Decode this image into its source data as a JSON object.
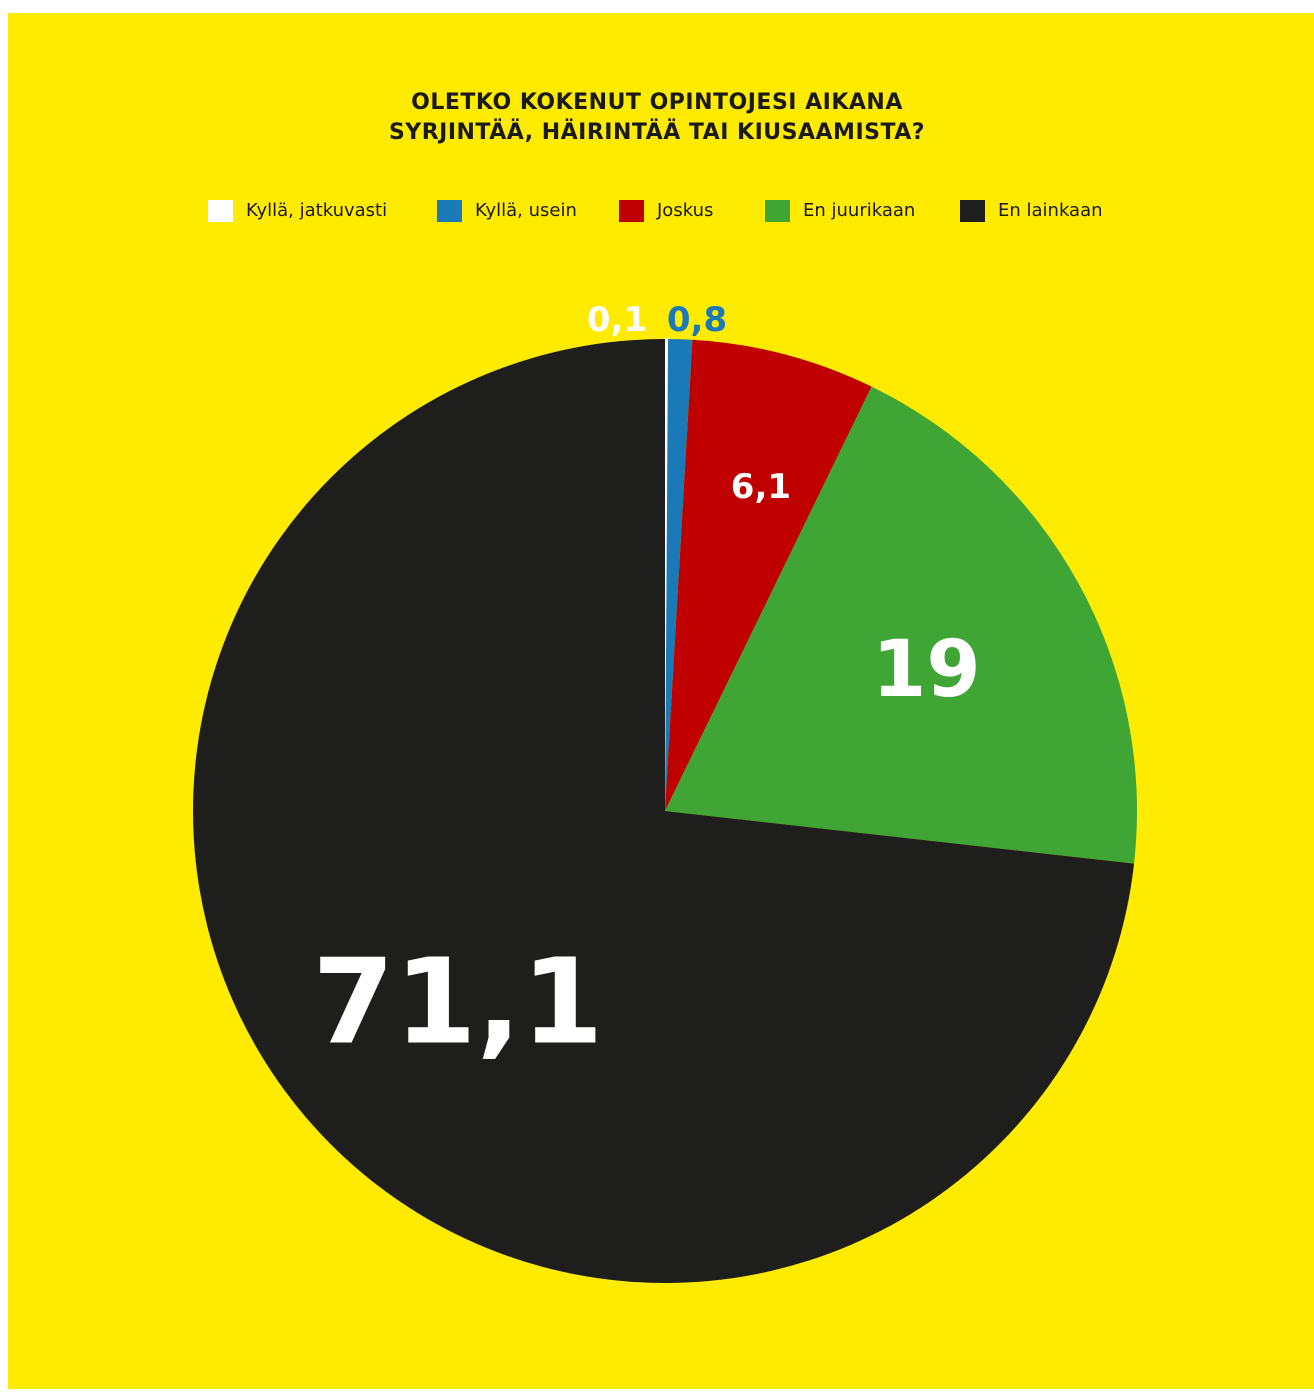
{
  "chart_data": {
    "type": "pie",
    "title": "OLETKO KOKENUT OPINTOJESI AIKANA SYRJINTÄÄ, HÄIRINTÄÄ TAI KIUSAAMISTA?",
    "title_lines": [
      "OLETKO KOKENUT OPINTOJESI AIKANA",
      "SYRJINTÄÄ, HÄIRINTÄÄ TAI KIUSAAMISTA?"
    ],
    "legend_position": "top",
    "categories": [
      "Kyllä, jatkuvasti",
      "Kyllä, usein",
      "Joskus",
      "En juurikaan",
      "En lainkaan"
    ],
    "values": [
      0.1,
      0.8,
      6.1,
      19,
      71.1
    ],
    "value_labels": [
      "0,1",
      "0,8",
      "6,1",
      "19",
      "71,1"
    ],
    "colors": [
      "#ffffff",
      "#1a7ab8",
      "#c00000",
      "#3fa535",
      "#1e1e1c"
    ],
    "label_colors": [
      "#ffffff",
      "#1a7ab8",
      "#ffffff",
      "#ffffff",
      "#ffffff"
    ]
  },
  "page": {
    "background": "#ffeb00"
  }
}
